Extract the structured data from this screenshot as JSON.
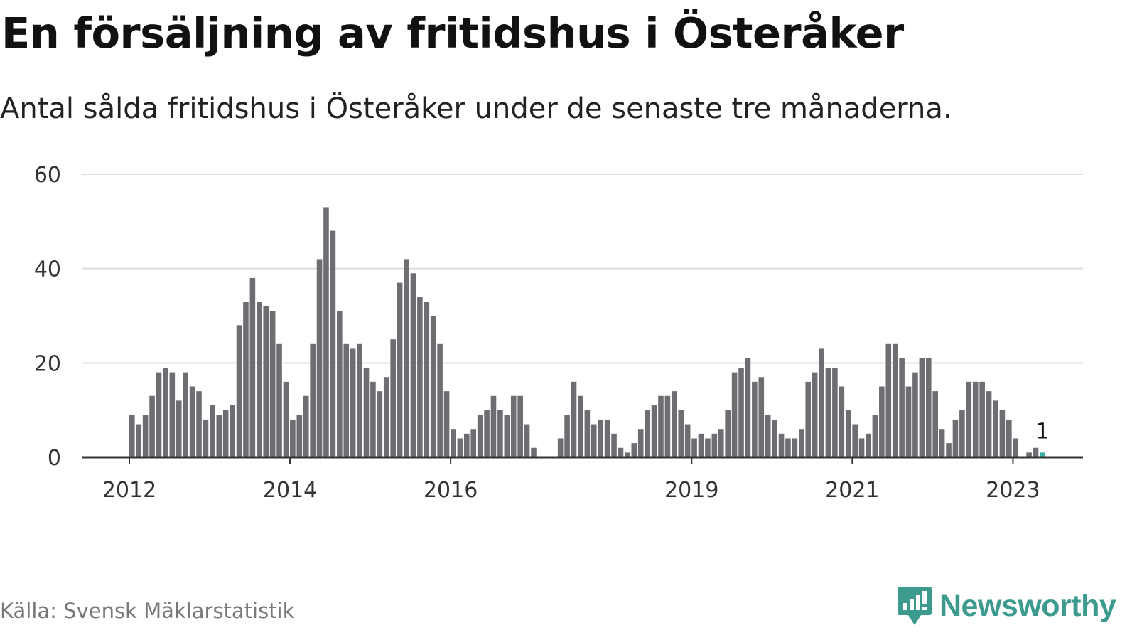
{
  "header": {
    "title": "En försäljning av fritidshus i Österåker",
    "subtitle": "Antal sålda fritidshus i Österåker under de senaste tre månaderna."
  },
  "footer": {
    "source": "Källa: Svensk Mäklarstatistik",
    "brand": "Newsworthy",
    "brand_icon": "newsworthy-logo-icon"
  },
  "colors": {
    "bar": "#6e6d72",
    "highlight": "#3ab0a6",
    "grid": "#dddddd",
    "axis": "#333333",
    "brand": "#3c9a8e"
  },
  "chart_data": {
    "type": "bar",
    "title": "En försäljning av fritidshus i Österåker",
    "subtitle": "Antal sålda fritidshus i Österåker under de senaste tre månaderna.",
    "xlabel": "",
    "ylabel": "",
    "ylim": [
      0,
      60
    ],
    "yticks": [
      0,
      20,
      40,
      60
    ],
    "grid": true,
    "start": "2012-01",
    "frequency": "monthly",
    "xtick_labels": [
      {
        "label": "2012",
        "index": 0
      },
      {
        "label": "2014",
        "index": 24
      },
      {
        "label": "2016",
        "index": 48
      },
      {
        "label": "2019",
        "index": 84
      },
      {
        "label": "2021",
        "index": 108
      },
      {
        "label": "2023",
        "index": 132
      }
    ],
    "values": [
      9,
      7,
      9,
      13,
      18,
      19,
      18,
      12,
      18,
      15,
      14,
      8,
      11,
      9,
      10,
      11,
      28,
      33,
      38,
      33,
      32,
      31,
      24,
      16,
      8,
      9,
      13,
      24,
      42,
      53,
      48,
      31,
      24,
      23,
      24,
      19,
      16,
      14,
      17,
      25,
      37,
      42,
      39,
      34,
      33,
      30,
      24,
      14,
      6,
      4,
      5,
      6,
      9,
      10,
      13,
      10,
      9,
      13,
      13,
      7,
      2,
      0,
      0,
      0,
      4,
      9,
      16,
      13,
      10,
      7,
      8,
      8,
      5,
      2,
      1,
      3,
      6,
      10,
      11,
      13,
      13,
      14,
      10,
      7,
      4,
      5,
      4,
      5,
      6,
      10,
      18,
      19,
      21,
      16,
      17,
      9,
      8,
      5,
      4,
      4,
      6,
      16,
      18,
      23,
      19,
      19,
      15,
      10,
      7,
      4,
      5,
      9,
      15,
      24,
      24,
      21,
      15,
      18,
      21,
      21,
      14,
      6,
      3,
      8,
      10,
      16,
      16,
      16,
      14,
      12,
      10,
      8,
      4,
      0,
      1,
      2,
      1
    ],
    "highlight_index": 136,
    "annotation": {
      "label": "1",
      "index": 136
    }
  }
}
